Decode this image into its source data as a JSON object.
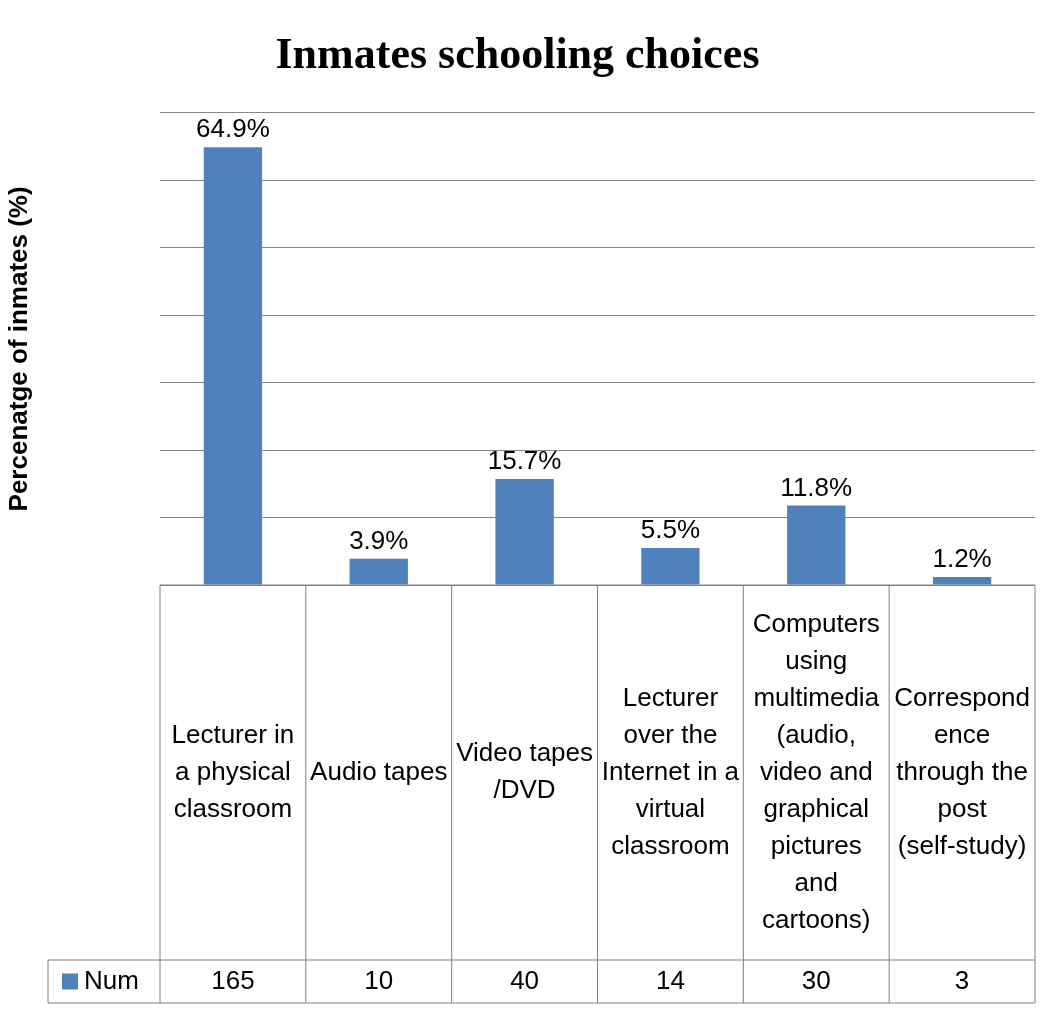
{
  "chart_data": {
    "type": "bar",
    "title": "Inmates schooling choices",
    "ylabel": "Percenatge of inmates (%)",
    "categories": [
      "Lecturer in a physical classroom",
      "Audio tapes",
      "Video tapes /DVD",
      "Lecturer over the Internet in a virtual classroom",
      "Computers using multimedia (audio, video and graphical pictures and cartoons)",
      "Correspondence through the post (self-study)"
    ],
    "series": [
      {
        "name": "Num",
        "color": "#4f81bd",
        "values": [
          64.9,
          3.9,
          15.7,
          5.5,
          11.8,
          1.2
        ],
        "value_labels": [
          "64.9%",
          "3.9%",
          "15.7%",
          "5.5%",
          "11.8%",
          "1.2%"
        ]
      }
    ],
    "annotations": [
      "165",
      "10",
      "40",
      "14",
      "30",
      "3"
    ],
    "grid": "y",
    "tick_labels": "x",
    "legend": "bottom"
  }
}
